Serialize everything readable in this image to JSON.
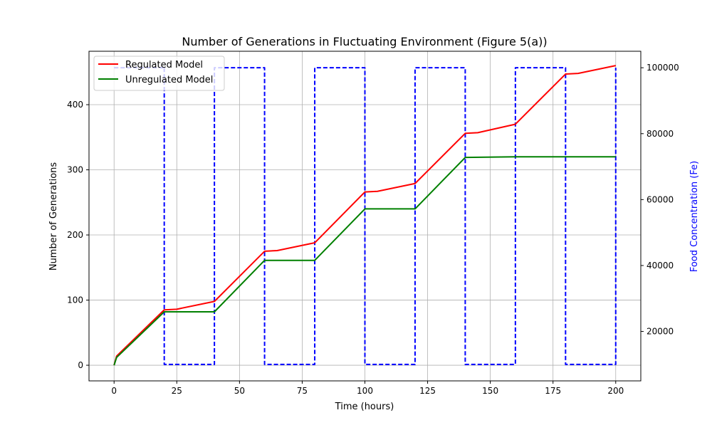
{
  "chart_data": {
    "type": "line",
    "title": "Number of Generations in Fluctuating Environment (Figure 5(a))",
    "xlabel": "Time (hours)",
    "ylabel": "Number of Generations",
    "y2label": "Food Concentration (Fe)",
    "xlim": [
      -10,
      210
    ],
    "ylim": [
      -24,
      482
    ],
    "y2lim": [
      5000,
      105000
    ],
    "xticks": [
      0,
      25,
      50,
      75,
      100,
      125,
      150,
      175,
      200
    ],
    "yticks": [
      0,
      100,
      200,
      300,
      400
    ],
    "y2ticks": [
      20000,
      40000,
      60000,
      80000,
      100000
    ],
    "grid": true,
    "legend_position": "top-left",
    "colors": {
      "regulated": "#ff0000",
      "unregulated": "#008000",
      "food": "#0000ff",
      "y2label": "#0000ff"
    },
    "series": [
      {
        "name": "Regulated Model",
        "axis": "left",
        "style": "solid",
        "color": "#ff0000",
        "x": [
          0,
          1,
          20,
          25,
          40,
          60,
          65,
          80,
          100,
          105,
          120,
          140,
          145,
          160,
          180,
          185,
          200
        ],
        "y": [
          0,
          14,
          85,
          86,
          98,
          175,
          176,
          188,
          266,
          267,
          279,
          356,
          357,
          370,
          447,
          448,
          460
        ]
      },
      {
        "name": "Unregulated Model",
        "axis": "left",
        "style": "solid",
        "color": "#008000",
        "x": [
          0,
          1,
          20,
          40,
          60,
          80,
          100,
          120,
          140,
          160,
          180,
          200
        ],
        "y": [
          0,
          12,
          82,
          82,
          161,
          161,
          240,
          240,
          319,
          320,
          320,
          320
        ]
      },
      {
        "axis": "right",
        "style": "dashed",
        "color": "#0000ff",
        "x": [
          20,
          20,
          40,
          40,
          60,
          60,
          80,
          80,
          100,
          100,
          120,
          120,
          140,
          140,
          160,
          160,
          180,
          180,
          200,
          200
        ],
        "y": [
          100000,
          10000,
          10000,
          100000,
          100000,
          10000,
          10000,
          100000,
          100000,
          10000,
          10000,
          100000,
          100000,
          10000,
          10000,
          100000,
          100000,
          10000,
          10000,
          100000
        ]
      }
    ],
    "food_top_segment": {
      "x": [
        0,
        20
      ],
      "y": [
        100000,
        100000
      ],
      "color": "#0000ff"
    }
  }
}
